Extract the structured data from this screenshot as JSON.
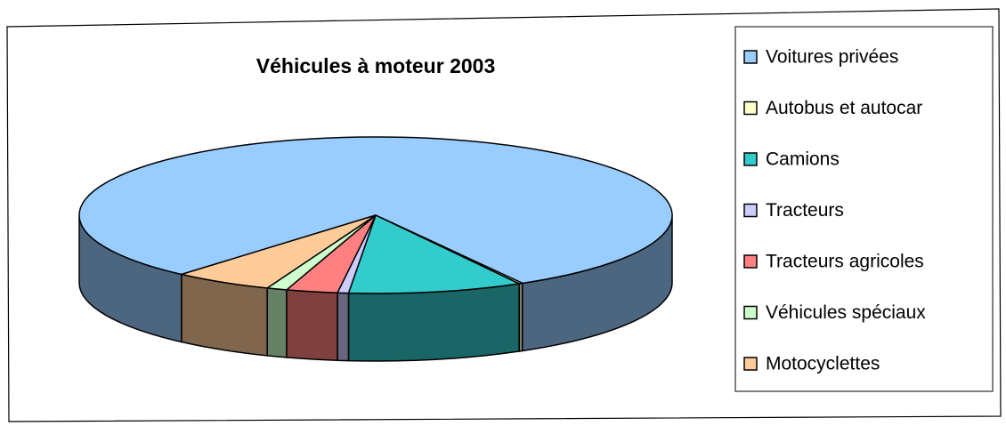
{
  "chart_data": {
    "type": "pie",
    "title": "Véhicules à moteur 2003",
    "categories": [
      "Voitures privées",
      "Autobus et autocar",
      "Camions",
      "Tracteurs",
      "Tracteurs agricoles",
      "Véhicules spéciaux",
      "Motocyclettes"
    ],
    "values": [
      80.4,
      0.2,
      9.5,
      0.6,
      2.8,
      1.1,
      5.4
    ],
    "colors": [
      "#99ccff",
      "#ffffcc",
      "#33cccc",
      "#ccccff",
      "#ff8080",
      "#ccffcc",
      "#ffcc99"
    ],
    "legend": "right"
  }
}
